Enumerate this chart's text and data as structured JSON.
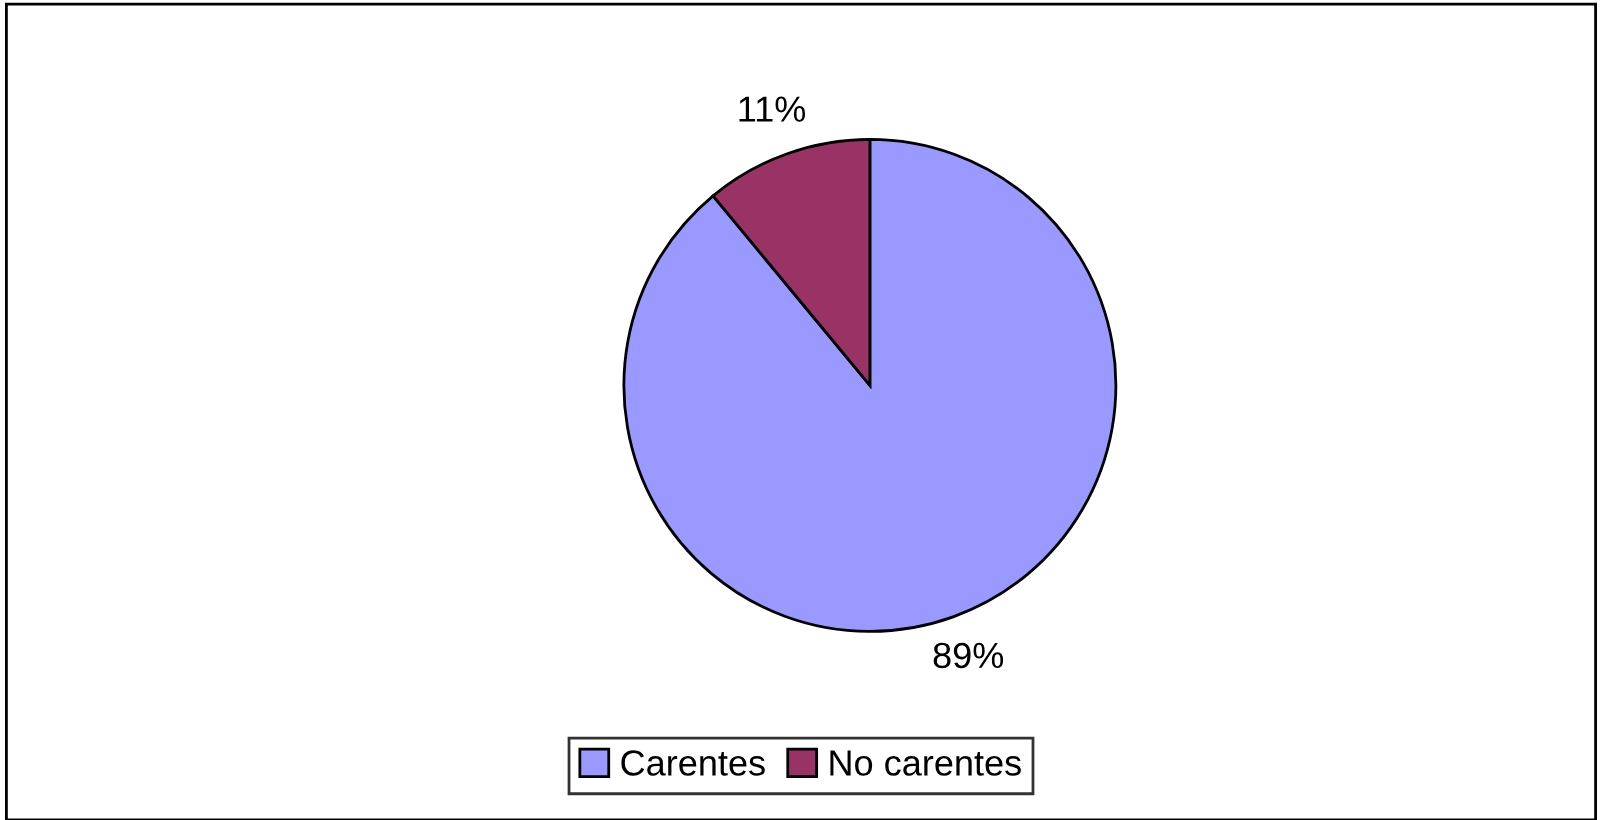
{
  "chart_data": {
    "type": "pie",
    "categories": [
      "Carentes",
      "No carentes"
    ],
    "values": [
      89,
      11
    ],
    "colors": [
      "#9999ff",
      "#993366"
    ],
    "value_labels": [
      "89%",
      "11%"
    ],
    "legend": "bottom"
  }
}
